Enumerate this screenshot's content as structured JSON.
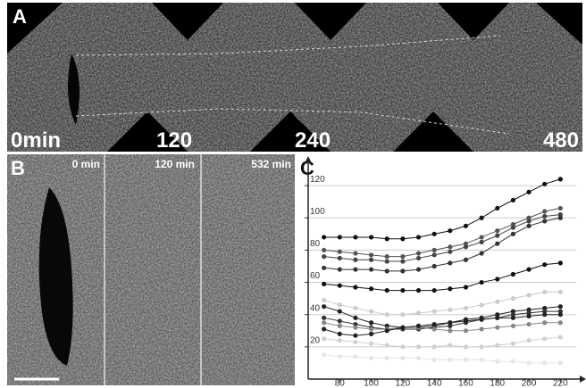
{
  "panels": {
    "a": {
      "label": "A",
      "times": [
        "0min",
        "120",
        "240",
        "480"
      ]
    },
    "b": {
      "label": "B",
      "times": [
        "0 min",
        "120 min",
        "532 min"
      ]
    },
    "c": {
      "label": "C"
    }
  },
  "chart_data": {
    "type": "line",
    "x": [
      70,
      80,
      90,
      100,
      110,
      120,
      130,
      140,
      150,
      160,
      170,
      180,
      190,
      200,
      210,
      220
    ],
    "series": [
      {
        "color": "#111111",
        "values": [
          88,
          88,
          88,
          88,
          87,
          87,
          88,
          90,
          92,
          95,
          100,
          106,
          111,
          116,
          121,
          124
        ]
      },
      {
        "color": "#555555",
        "values": [
          80,
          79,
          78,
          77,
          76,
          76,
          78,
          80,
          82,
          84,
          88,
          92,
          96,
          100,
          104,
          106
        ]
      },
      {
        "color": "#444444",
        "values": [
          76,
          75,
          74,
          74,
          73,
          73,
          75,
          77,
          79,
          82,
          85,
          89,
          94,
          98,
          101,
          102
        ]
      },
      {
        "color": "#333333",
        "values": [
          69,
          68,
          68,
          68,
          67,
          67,
          68,
          70,
          72,
          74,
          78,
          84,
          90,
          95,
          98,
          100
        ]
      },
      {
        "color": "#111111",
        "values": [
          59,
          58,
          57,
          56,
          55,
          55,
          55,
          55,
          56,
          57,
          60,
          62,
          65,
          68,
          71,
          72
        ]
      },
      {
        "color": "#cccccc",
        "values": [
          49,
          46,
          44,
          42,
          40,
          40,
          41,
          42,
          43,
          44,
          46,
          48,
          50,
          52,
          54,
          54
        ]
      },
      {
        "color": "#222222",
        "values": [
          45,
          42,
          38,
          35,
          33,
          32,
          32,
          33,
          35,
          37,
          38,
          40,
          42,
          43,
          44,
          45
        ]
      },
      {
        "color": "#333333",
        "values": [
          38,
          36,
          34,
          32,
          31,
          31,
          31,
          32,
          33,
          35,
          37,
          38,
          40,
          41,
          42,
          42
        ]
      },
      {
        "color": "#888888",
        "values": [
          35,
          33,
          32,
          31,
          31,
          32,
          32,
          31,
          30,
          30,
          31,
          32,
          33,
          34,
          35,
          35
        ]
      },
      {
        "color": "#222222",
        "values": [
          31,
          28,
          27,
          28,
          30,
          32,
          33,
          34,
          35,
          36,
          37,
          38,
          38,
          39,
          40,
          40
        ]
      },
      {
        "color": "#d0d0d0",
        "values": [
          25,
          24,
          23,
          22,
          21,
          20,
          20,
          20,
          21,
          20,
          20,
          21,
          22,
          24,
          25,
          26
        ]
      },
      {
        "color": "#e6e6e6",
        "values": [
          15,
          14,
          14,
          13,
          13,
          13,
          13,
          12,
          12,
          12,
          12,
          11,
          11,
          10,
          10,
          10
        ]
      }
    ],
    "xlim": [
      60,
      230
    ],
    "ylim": [
      0,
      135
    ],
    "xticks": [
      80,
      100,
      120,
      140,
      160,
      180,
      200,
      220
    ],
    "yticks": [
      20,
      40,
      60,
      80,
      100,
      120
    ],
    "grid": true
  }
}
